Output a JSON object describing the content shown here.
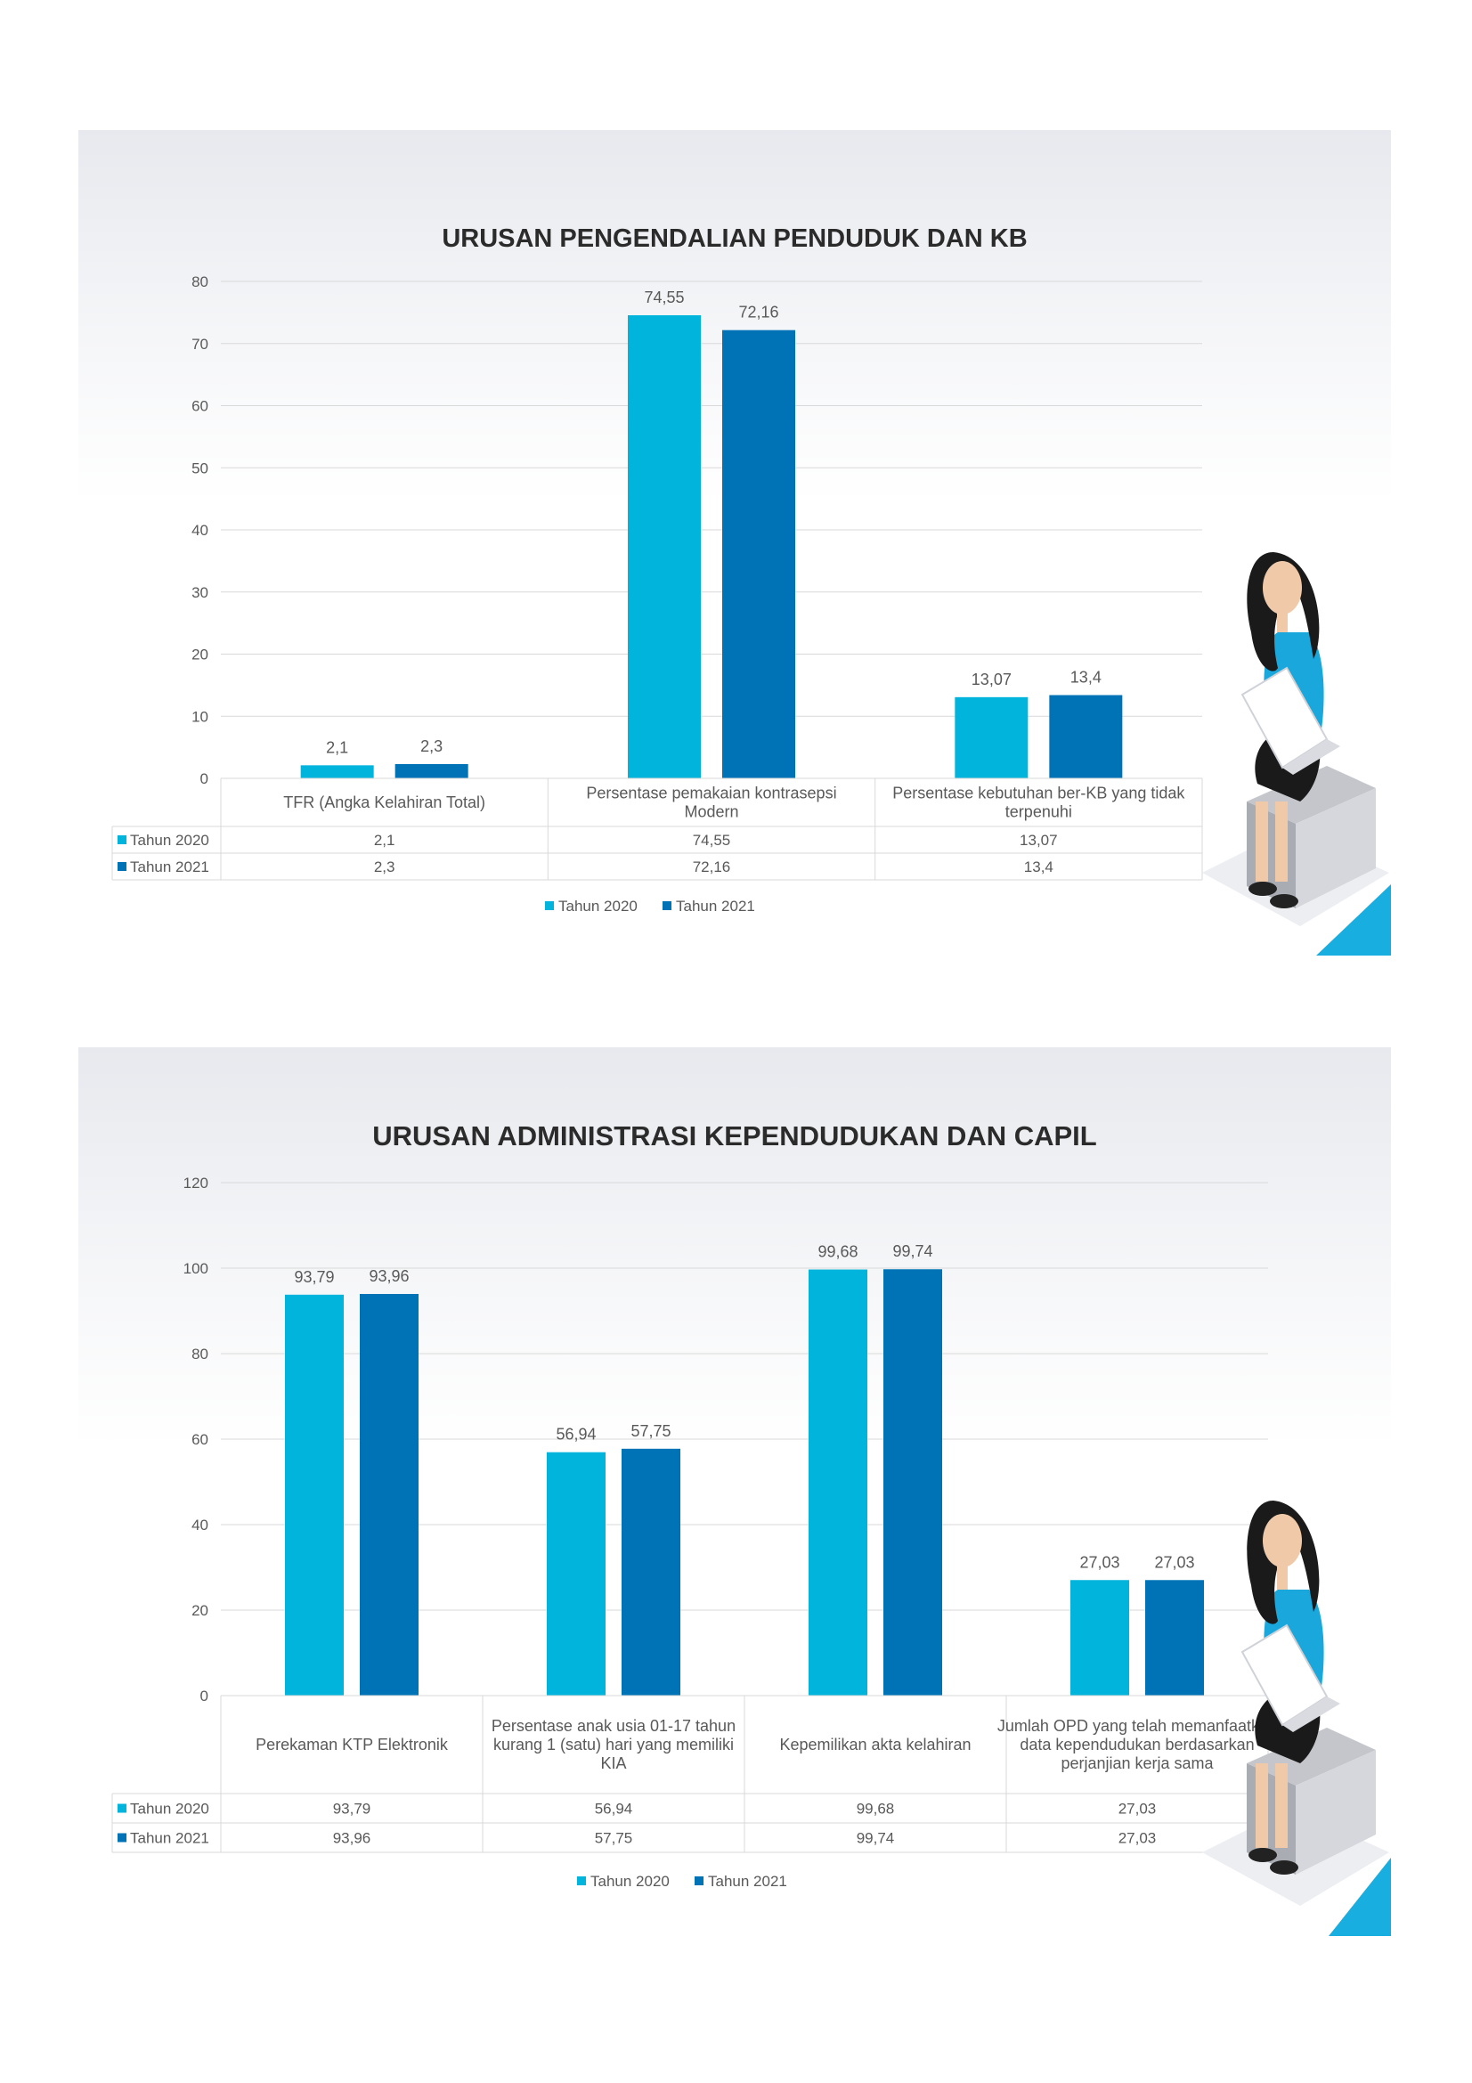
{
  "colors": {
    "tahun_2020": "#00b4dc",
    "tahun_2021": "#0073b7",
    "grid": "#d9d9d9",
    "text": "#595959"
  },
  "icons": [
    "woman-with-laptop-illustration",
    "corner-triangle"
  ],
  "chart_data": [
    {
      "type": "bar",
      "title": "URUSAN PENGENDALIAN PENDUDUK DAN KB",
      "categories": [
        "TFR (Angka Kelahiran Total)",
        "Persentase pemakaian kontrasepsi Modern",
        "Persentase kebutuhan ber-KB yang tidak terpenuhi"
      ],
      "series": [
        {
          "name": "Tahun 2020",
          "values": [
            2.1,
            74.55,
            13.07
          ],
          "labels": [
            "2,1",
            "74,55",
            "13,07"
          ]
        },
        {
          "name": "Tahun 2021",
          "values": [
            2.3,
            72.16,
            13.4
          ],
          "labels": [
            "2,3",
            "72,16",
            "13,4"
          ]
        }
      ],
      "ylim": [
        0,
        80
      ],
      "yticks": [
        "0",
        "10",
        "20",
        "30",
        "40",
        "50",
        "60",
        "70",
        "80"
      ],
      "grid": true,
      "legend": "bottom",
      "data_table": true
    },
    {
      "type": "bar",
      "title": "URUSAN ADMINISTRASI KEPENDUDUKAN DAN CAPIL",
      "categories": [
        "Perekaman KTP Elektronik",
        "Persentase anak usia 01-17 tahun kurang 1 (satu) hari yang memiliki KIA",
        "Kepemilikan akta kelahiran",
        "Jumlah OPD yang telah memanfaatkan data kependudukan berdasarkan perjanjian kerja sama"
      ],
      "series": [
        {
          "name": "Tahun 2020",
          "values": [
            93.79,
            56.94,
            99.68,
            27.03
          ],
          "labels": [
            "93,79",
            "56,94",
            "99,68",
            "27,03"
          ]
        },
        {
          "name": "Tahun 2021",
          "values": [
            93.96,
            57.75,
            99.74,
            27.03
          ],
          "labels": [
            "93,96",
            "57,75",
            "99,74",
            "27,03"
          ]
        }
      ],
      "ylim": [
        0,
        120
      ],
      "yticks": [
        "0",
        "20",
        "40",
        "60",
        "80",
        "100",
        "120"
      ],
      "grid": true,
      "legend": "bottom",
      "data_table": true
    }
  ]
}
